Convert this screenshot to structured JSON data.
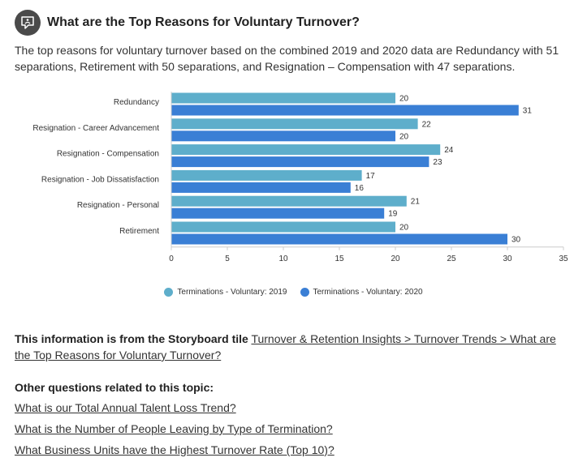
{
  "header": {
    "title": "What are the Top Reasons for Voluntary Turnover?",
    "icon": "chat-bubble-icon"
  },
  "intro": "The top reasons for voluntary turnover based on the combined 2019 and 2020 data are Redundancy with 51 separations, Retirement with 50 separations, and Resignation – Compensation with 47 separations.",
  "chart_data": {
    "type": "bar",
    "orientation": "horizontal",
    "categories": [
      "Redundancy",
      "Resignation - Career Advancement",
      "Resignation - Compensation",
      "Resignation - Job Dissatisfaction",
      "Resignation - Personal",
      "Retirement"
    ],
    "series": [
      {
        "name": "Terminations - Voluntary: 2019",
        "color": "#5eaecb",
        "values": [
          20,
          22,
          24,
          17,
          21,
          20
        ]
      },
      {
        "name": "Terminations - Voluntary: 2020",
        "color": "#3a7fd5",
        "values": [
          31,
          20,
          23,
          16,
          19,
          30
        ]
      }
    ],
    "xlim": [
      0,
      35
    ],
    "xticks": [
      0,
      5,
      10,
      15,
      20,
      25,
      30,
      35
    ],
    "grid": false,
    "data_labels": true,
    "legend_position": "bottom"
  },
  "source": {
    "prefix": "This information is from the Storyboard tile",
    "link_text": "Turnover & Retention Insights > Turnover Trends > What are the Top Reasons for Voluntary Turnover?"
  },
  "related": {
    "title": "Other questions related to this topic:",
    "links": [
      "What is our Total Annual Talent Loss Trend?",
      "What is the Number of People Leaving by Type of Termination?",
      "What Business Units have the Highest Turnover Rate (Top 10)?"
    ]
  }
}
